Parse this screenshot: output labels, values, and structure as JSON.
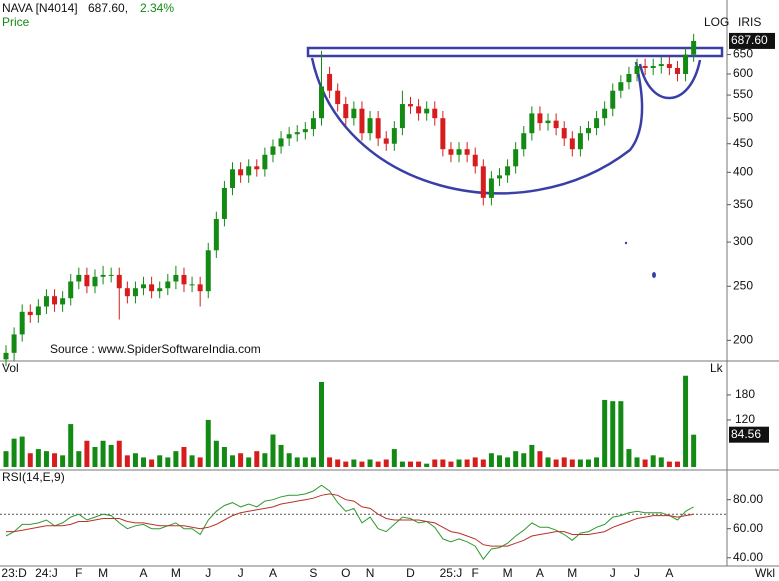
{
  "chart_data": {
    "type": "candlestick",
    "title": "NAVA [N4014]",
    "last_text": "687.60,",
    "change": "2.34%",
    "price_label": "Price",
    "scale_label": "LOG",
    "indicator_label": "IRIS",
    "source": "Source : www.SpiderSoftwareIndia.com",
    "frequency": "Wkl",
    "log_scale": true,
    "colors": {
      "up": "#138a13",
      "down": "#d61c1c"
    },
    "categories": [
      null,
      "23:D",
      null,
      null,
      null,
      "24:J",
      null,
      null,
      null,
      "F",
      null,
      null,
      "M",
      null,
      null,
      null,
      null,
      "A",
      null,
      null,
      null,
      "M",
      null,
      null,
      null,
      "J",
      null,
      null,
      null,
      "J",
      null,
      null,
      null,
      "A",
      null,
      null,
      null,
      null,
      "S",
      null,
      null,
      null,
      "O",
      null,
      null,
      "N",
      null,
      null,
      null,
      null,
      "D",
      null,
      null,
      null,
      null,
      "25:J",
      null,
      null,
      "F",
      null,
      null,
      null,
      "M",
      null,
      null,
      null,
      "A",
      null,
      null,
      null,
      "M",
      null,
      null,
      null,
      null,
      "J",
      null,
      null,
      "J",
      null,
      null,
      null,
      "A",
      null,
      null,
      null
    ],
    "open": [
      185,
      190,
      205,
      225,
      222,
      230,
      240,
      232,
      238,
      255,
      262,
      250,
      260,
      262,
      262,
      248,
      240,
      248,
      252,
      245,
      248,
      255,
      262,
      252,
      252,
      245,
      290,
      330,
      375,
      405,
      395,
      410,
      405,
      430,
      445,
      460,
      468,
      472,
      478,
      500,
      600,
      560,
      530,
      500,
      520,
      470,
      500,
      460,
      450,
      480,
      530,
      525,
      510,
      520,
      500,
      440,
      430,
      440,
      430,
      410,
      360,
      390,
      395,
      410,
      440,
      470,
      510,
      490,
      495,
      480,
      460,
      440,
      470,
      480,
      500,
      520,
      560,
      580,
      600,
      620,
      615,
      620,
      625,
      615,
      600,
      650
    ],
    "high": [
      196,
      211,
      232,
      232,
      237,
      247,
      247,
      245,
      263,
      270,
      270,
      268,
      272,
      270,
      270,
      255,
      255,
      260,
      260,
      255,
      263,
      272,
      270,
      260,
      260,
      299,
      340,
      386,
      417,
      417,
      422,
      422,
      443,
      458,
      474,
      482,
      486,
      492,
      515,
      660,
      618,
      577,
      546,
      536,
      536,
      515,
      515,
      474,
      494,
      560,
      546,
      541,
      536,
      536,
      515,
      453,
      453,
      453,
      443,
      422,
      402,
      407,
      422,
      453,
      484,
      525,
      525,
      510,
      510,
      494,
      474,
      484,
      494,
      515,
      536,
      577,
      597,
      618,
      639,
      639,
      639,
      644,
      644,
      633,
      670,
      708
    ],
    "low": [
      180,
      184,
      199,
      215,
      215,
      223,
      225,
      225,
      231,
      247,
      243,
      243,
      252,
      254,
      218,
      233,
      233,
      241,
      238,
      238,
      241,
      247,
      244,
      244,
      230,
      238,
      281,
      320,
      364,
      383,
      383,
      393,
      393,
      417,
      432,
      446,
      454,
      458,
      464,
      485,
      543,
      514,
      485,
      485,
      456,
      456,
      446,
      437,
      437,
      466,
      509,
      495,
      495,
      485,
      427,
      417,
      417,
      417,
      398,
      349,
      349,
      378,
      383,
      398,
      427,
      456,
      475,
      475,
      466,
      446,
      427,
      427,
      456,
      466,
      485,
      504,
      543,
      563,
      582,
      597,
      597,
      601,
      597,
      582,
      582,
      631
    ],
    "close": [
      190,
      205,
      225,
      222,
      230,
      240,
      232,
      238,
      255,
      262,
      250,
      260,
      262,
      262,
      248,
      240,
      248,
      252,
      245,
      248,
      255,
      262,
      252,
      252,
      245,
      290,
      330,
      375,
      405,
      395,
      410,
      405,
      430,
      445,
      460,
      468,
      472,
      478,
      500,
      570,
      560,
      530,
      500,
      520,
      470,
      500,
      460,
      450,
      480,
      530,
      525,
      510,
      520,
      500,
      440,
      430,
      440,
      430,
      410,
      360,
      390,
      395,
      410,
      440,
      470,
      510,
      490,
      495,
      480,
      460,
      440,
      470,
      480,
      500,
      520,
      560,
      580,
      600,
      620,
      615,
      620,
      625,
      615,
      600,
      650,
      687.6
    ],
    "last_label": "687.60",
    "ylim": [
      186,
      814
    ],
    "yticks": [
      200,
      250,
      300,
      350,
      400,
      450,
      500,
      550,
      600,
      650
    ],
    "volume": {
      "label": "Vol",
      "unit": "Lk",
      "values": [
        45,
        75,
        80,
        40,
        50,
        45,
        40,
        35,
        110,
        45,
        70,
        55,
        70,
        60,
        70,
        35,
        40,
        30,
        25,
        35,
        30,
        45,
        55,
        35,
        30,
        120,
        70,
        55,
        35,
        40,
        30,
        45,
        40,
        85,
        60,
        40,
        30,
        30,
        30,
        211,
        30,
        25,
        20,
        25,
        20,
        25,
        20,
        25,
        50,
        20,
        20,
        20,
        15,
        25,
        25,
        20,
        25,
        25,
        30,
        25,
        40,
        35,
        30,
        45,
        40,
        60,
        45,
        30,
        25,
        30,
        25,
        25,
        25,
        30,
        168,
        165,
        165,
        50,
        30,
        25,
        35,
        30,
        20,
        20,
        226,
        84.56
      ],
      "ylim": [
        7,
        259
      ],
      "yticks": [
        120,
        180
      ]
    },
    "rsi": {
      "label": "RSI(14,E,9)",
      "dashed_level": 70,
      "series": [
        {
          "color": "#2e9a2e",
          "values": [
            55,
            58,
            63,
            63,
            64,
            66,
            62,
            64,
            68,
            70,
            66,
            68,
            70,
            69,
            64,
            60,
            62,
            63,
            60,
            60,
            62,
            64,
            60,
            60,
            56,
            66,
            72,
            76,
            78,
            75,
            77,
            75,
            79,
            80,
            82,
            83,
            83,
            84,
            86,
            90,
            86,
            78,
            72,
            74,
            64,
            68,
            60,
            58,
            63,
            68,
            67,
            64,
            65,
            61,
            53,
            51,
            53,
            51,
            48,
            39,
            46,
            47,
            50,
            55,
            59,
            64,
            61,
            61,
            59,
            56,
            52,
            57,
            58,
            61,
            63,
            68,
            69,
            71,
            72,
            71,
            71,
            71,
            69,
            66,
            72,
            75
          ]
        },
        {
          "color": "#b8322a",
          "values": [
            58,
            58,
            59,
            60,
            61,
            62,
            62,
            62,
            63,
            65,
            65,
            66,
            67,
            67,
            67,
            65,
            64,
            64,
            63,
            62,
            62,
            62,
            62,
            61,
            60,
            61,
            63,
            66,
            69,
            71,
            72,
            73,
            74,
            75,
            77,
            78,
            79,
            80,
            81,
            83,
            84,
            83,
            80,
            79,
            75,
            74,
            70,
            67,
            66,
            66,
            66,
            66,
            65,
            64,
            61,
            58,
            57,
            55,
            53,
            49,
            48,
            48,
            48,
            50,
            52,
            55,
            56,
            57,
            58,
            58,
            56,
            56,
            56,
            57,
            58,
            61,
            63,
            65,
            67,
            68,
            69,
            69,
            69,
            68,
            69,
            70
          ]
        }
      ],
      "ylim": [
        35,
        97
      ],
      "yticks": [
        {
          "value": 40,
          "label": "40.00"
        },
        {
          "value": 60,
          "label": "60.00"
        },
        {
          "value": 80,
          "label": "80.00"
        }
      ]
    }
  }
}
